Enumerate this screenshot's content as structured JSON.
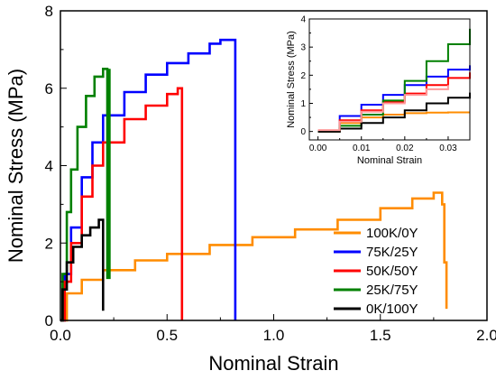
{
  "chart_data": [
    {
      "type": "line",
      "xlabel": "Nominal Strain",
      "ylabel": "Nominal Stress (MPa)",
      "xlim": [
        0,
        2.0
      ],
      "ylim": [
        0,
        8
      ],
      "xticks": [
        "0.0",
        "0.5",
        "1.0",
        "1.5",
        "2.0"
      ],
      "yticks": [
        "0",
        "2",
        "4",
        "6",
        "8"
      ],
      "grid": false,
      "legend_position": "bottom-right",
      "series": [
        {
          "name": "100K/0Y",
          "color": "#ff8c00",
          "x": [
            0.0,
            0.03,
            0.1,
            0.2,
            0.35,
            0.5,
            0.7,
            0.9,
            1.1,
            1.3,
            1.5,
            1.65,
            1.75,
            1.78,
            1.79,
            1.8,
            1.81
          ],
          "y": [
            0.0,
            0.7,
            1.05,
            1.3,
            1.55,
            1.72,
            1.95,
            2.15,
            2.35,
            2.6,
            2.9,
            3.15,
            3.3,
            3.3,
            3.0,
            1.5,
            0.3
          ]
        },
        {
          "name": "75K/25Y",
          "color": "#0000ff",
          "x": [
            0.0,
            0.02,
            0.05,
            0.1,
            0.15,
            0.2,
            0.3,
            0.4,
            0.5,
            0.6,
            0.7,
            0.75,
            0.8,
            0.82,
            0.82
          ],
          "y": [
            0.0,
            1.2,
            2.4,
            3.7,
            4.6,
            5.3,
            5.9,
            6.35,
            6.65,
            6.9,
            7.15,
            7.25,
            7.25,
            7.25,
            0.0
          ]
        },
        {
          "name": "50K/50Y",
          "color": "#ff0000",
          "x": [
            0.0,
            0.02,
            0.05,
            0.1,
            0.15,
            0.2,
            0.3,
            0.4,
            0.5,
            0.55,
            0.57,
            0.57
          ],
          "y": [
            0.0,
            1.0,
            2.0,
            3.2,
            4.0,
            4.6,
            5.2,
            5.55,
            5.85,
            6.0,
            6.0,
            0.0
          ]
        },
        {
          "name": "25K/75Y",
          "color": "#008000",
          "x": [
            0.0,
            0.01,
            0.03,
            0.05,
            0.08,
            0.12,
            0.16,
            0.2,
            0.22,
            0.22,
            0.23,
            0.23
          ],
          "y": [
            0.0,
            1.2,
            2.8,
            3.9,
            5.0,
            5.8,
            6.3,
            6.5,
            6.5,
            1.1,
            1.1,
            6.5
          ]
        },
        {
          "name": "0K/100Y",
          "color": "#000000",
          "x": [
            0.0,
            0.01,
            0.03,
            0.06,
            0.1,
            0.14,
            0.18,
            0.2,
            0.2
          ],
          "y": [
            0.0,
            0.8,
            1.5,
            1.9,
            2.2,
            2.4,
            2.6,
            2.6,
            0.25
          ]
        }
      ]
    },
    {
      "type": "line",
      "xlabel": "Nominal Strain",
      "ylabel": "Nominal Stress (MPa)",
      "xlim": [
        -0.002,
        0.035
      ],
      "ylim": [
        -0.3,
        4
      ],
      "xticks": [
        "0.00",
        "0.01",
        "0.02",
        "0.03"
      ],
      "yticks": [
        "0",
        "1",
        "2",
        "3",
        "4"
      ],
      "grid": false,
      "series": [
        {
          "color": "#ff8c00",
          "x": [
            0.0,
            0.005,
            0.01,
            0.015,
            0.02,
            0.025,
            0.03,
            0.035
          ],
          "y": [
            0.0,
            0.3,
            0.5,
            0.6,
            0.65,
            0.67,
            0.68,
            0.68
          ]
        },
        {
          "color": "#0000ff",
          "x": [
            0.0,
            0.005,
            0.01,
            0.015,
            0.02,
            0.025,
            0.03,
            0.035
          ],
          "y": [
            0.0,
            0.55,
            0.95,
            1.3,
            1.65,
            1.95,
            2.2,
            2.35
          ]
        },
        {
          "color": "#ff0000",
          "x": [
            0.0,
            0.005,
            0.01,
            0.015,
            0.02,
            0.025,
            0.03,
            0.035
          ],
          "y": [
            0.0,
            0.4,
            0.75,
            1.05,
            1.35,
            1.65,
            1.9,
            2.1
          ]
        },
        {
          "color": "#008000",
          "x": [
            0.0,
            0.005,
            0.01,
            0.015,
            0.02,
            0.025,
            0.03,
            0.035
          ],
          "y": [
            0.0,
            0.2,
            0.6,
            1.1,
            1.8,
            2.5,
            3.1,
            3.65
          ]
        },
        {
          "color": "#000000",
          "x": [
            0.0,
            0.005,
            0.01,
            0.015,
            0.02,
            0.025,
            0.03,
            0.035
          ],
          "y": [
            0.0,
            0.1,
            0.3,
            0.5,
            0.75,
            1.0,
            1.2,
            1.38
          ]
        },
        {
          "color": "#ff9999",
          "x": [
            0.0,
            0.005,
            0.01,
            0.015,
            0.02,
            0.025,
            0.03
          ],
          "y": [
            0.05,
            0.35,
            0.7,
            1.0,
            1.3,
            1.5,
            1.65
          ]
        }
      ]
    }
  ]
}
